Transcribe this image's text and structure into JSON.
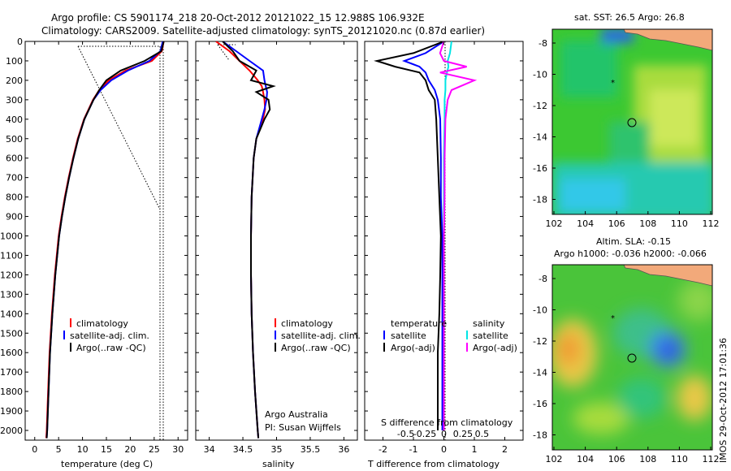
{
  "header": {
    "line1": "Argo profile: CS 5901174_218 20-Oct-2012 20121022_15 12.988S 106.932E",
    "line2": "Climatology: CARS2009. Satellite-adjusted climatology: synTS_20121020.nc (0.87d earlier)"
  },
  "side_stamp": "IMOS 29-Oct-2012 17:01:36",
  "colors": {
    "climatology": "#ff0000",
    "satellite": "#0000ff",
    "argo": "#000000",
    "cyan": "#00e5e5",
    "magenta": "#ff00ff"
  },
  "chart_data": [
    {
      "type": "line",
      "xlabel": "temperature (deg C)",
      "xlim": [
        -2,
        32
      ],
      "ylim": [
        2050,
        0
      ],
      "xticks": [
        "0",
        "5",
        "10",
        "15",
        "20",
        "25",
        "30"
      ],
      "yticks": [
        "0",
        "100",
        "200",
        "300",
        "400",
        "500",
        "600",
        "700",
        "800",
        "900",
        "1000",
        "1100",
        "1200",
        "1300",
        "1400",
        "1500",
        "1600",
        "1700",
        "1800",
        "1900",
        "2000"
      ],
      "legend": [
        "climatology",
        "satellite-adj. clim.",
        "Argo(..raw -QC)"
      ],
      "depth": [
        0,
        50,
        100,
        150,
        200,
        250,
        300,
        400,
        500,
        600,
        700,
        800,
        900,
        1000,
        1200,
        1400,
        1600,
        1800,
        2000,
        2040
      ],
      "series": [
        {
          "name": "climatology",
          "values": [
            27.0,
            26.6,
            24.5,
            19.0,
            15.5,
            13.5,
            12.2,
            10.3,
            9.0,
            8.0,
            7.1,
            6.3,
            5.6,
            5.0,
            4.2,
            3.6,
            3.1,
            2.8,
            2.5,
            2.4
          ]
        },
        {
          "name": "satellite-adj. clim.",
          "values": [
            26.8,
            26.3,
            24.0,
            19.5,
            16.0,
            13.8,
            12.3,
            10.4,
            9.1,
            8.1,
            7.2,
            6.4,
            5.7,
            5.1,
            4.3,
            3.7,
            3.2,
            2.9,
            2.6,
            2.5
          ]
        },
        {
          "name": "Argo(..raw -QC)",
          "values": [
            27.0,
            26.5,
            23.0,
            18.0,
            15.0,
            13.5,
            12.3,
            10.4,
            9.1,
            8.1,
            7.2,
            6.4,
            5.7,
            5.1,
            4.3,
            3.7,
            3.2,
            2.9,
            2.6,
            2.5
          ]
        }
      ]
    },
    {
      "type": "line",
      "xlabel": "salinity",
      "xlim": [
        33.8,
        36.2
      ],
      "ylim": [
        2050,
        0
      ],
      "xticks": [
        "34",
        "34.5",
        "35",
        "35.5",
        "36"
      ],
      "legend": [
        "climatology",
        "satellite-adj. clim.",
        "Argo(..raw -QC)"
      ],
      "annotation": [
        "Argo Australia",
        "PI: Susan Wijffels"
      ],
      "depth": [
        0,
        50,
        100,
        150,
        200,
        230,
        260,
        300,
        350,
        400,
        500,
        600,
        800,
        1000,
        1200,
        1400,
        1600,
        1800,
        2000,
        2040
      ],
      "series": [
        {
          "name": "climatology",
          "values": [
            34.1,
            34.3,
            34.45,
            34.6,
            34.72,
            34.78,
            34.8,
            34.82,
            34.83,
            34.8,
            34.7,
            34.66,
            34.63,
            34.62,
            34.62,
            34.63,
            34.65,
            34.68,
            34.72,
            34.73
          ]
        },
        {
          "name": "satellite-adj. clim.",
          "values": [
            34.2,
            34.4,
            34.6,
            34.8,
            34.82,
            34.84,
            34.86,
            34.85,
            34.82,
            34.78,
            34.7,
            34.66,
            34.63,
            34.62,
            34.62,
            34.63,
            34.65,
            34.68,
            34.72,
            34.73
          ]
        },
        {
          "name": "Argo(..raw -QC)",
          "values": [
            34.2,
            34.35,
            34.45,
            34.7,
            34.62,
            34.95,
            34.7,
            34.88,
            34.9,
            34.82,
            34.7,
            34.66,
            34.63,
            34.62,
            34.62,
            34.63,
            34.65,
            34.68,
            34.72,
            34.73
          ]
        }
      ]
    },
    {
      "type": "line",
      "xlabel": "T difference from climatology",
      "xlabel_top": "S difference from climatology",
      "xlim": [
        -2.6,
        2.6
      ],
      "ylim": [
        2050,
        0
      ],
      "xticks": [
        "-2",
        "-1",
        "0",
        "1",
        "2"
      ],
      "s_xticks": [
        "-0.5",
        "-0.25",
        "0",
        "0.25",
        "0.5"
      ],
      "legend_temperature": [
        "temperature",
        "satellite",
        "Argo(-adj)"
      ],
      "legend_salinity": [
        "salinity",
        "satellite",
        "Argo(-adj)"
      ],
      "depth": [
        0,
        60,
        100,
        130,
        160,
        200,
        250,
        300,
        400,
        600,
        800,
        1000,
        1200,
        1400,
        1600,
        1800,
        2000
      ],
      "series": [
        {
          "name": "T satellite",
          "values": [
            0,
            -0.6,
            -1.3,
            -0.8,
            -0.6,
            -0.5,
            -0.3,
            -0.2,
            -0.12,
            -0.1,
            -0.1,
            -0.05,
            -0.05,
            -0.05,
            -0.05,
            -0.05,
            -0.05
          ]
        },
        {
          "name": "T Argo(-adj)",
          "values": [
            0,
            -1.0,
            -2.2,
            -1.6,
            -0.8,
            -0.6,
            -0.5,
            -0.3,
            -0.25,
            -0.2,
            -0.15,
            -0.1,
            -0.12,
            -0.15,
            -0.2,
            -0.2,
            -0.2
          ]
        },
        {
          "name": "S satellite",
          "values": [
            0.1,
            0.08,
            0.05,
            0.06,
            0.04,
            0.02,
            0.02,
            0.01,
            0.01,
            0.0,
            0.0,
            0.0,
            0.0,
            0.0,
            0.0,
            0.0,
            0.0
          ]
        },
        {
          "name": "S Argo(-adj)",
          "values": [
            0.0,
            -0.05,
            0.0,
            0.3,
            -0.05,
            0.4,
            0.1,
            0.05,
            0.02,
            0.01,
            0.01,
            0.0,
            0.0,
            0.0,
            0.0,
            0.0,
            0.0
          ]
        }
      ]
    },
    {
      "type": "heatmap",
      "title": "sat. SST: 26.5 Argo: 26.8",
      "xticks": [
        "102",
        "104",
        "106",
        "108",
        "110",
        "112"
      ],
      "yticks": [
        "-8",
        "-10",
        "-12",
        "-14",
        "-16",
        "-18"
      ]
    },
    {
      "type": "heatmap",
      "title": "Altim. SLA: -0.15",
      "subtitle": "Argo h1000: -0.036 h2000: -0.066",
      "xticks": [
        "102",
        "104",
        "106",
        "108",
        "110",
        "112"
      ],
      "yticks": [
        "-8",
        "-10",
        "-12",
        "-14",
        "-16",
        "-18"
      ]
    }
  ]
}
